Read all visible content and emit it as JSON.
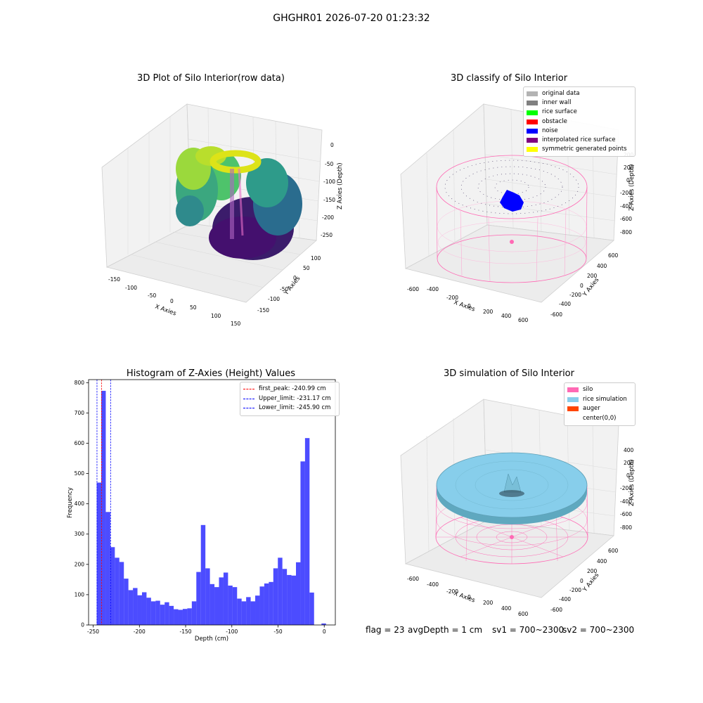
{
  "suptitle": "GHGHR01 2026-07-20 01:23:32",
  "panels": {
    "raw": {
      "title": "3D Plot of Silo Interior(row data)",
      "xlabel": "X Axies",
      "ylabel": "Y Axies",
      "zlabel": "Z Axies (Depth)",
      "xticks": [
        "-150",
        "-100",
        "-50",
        "0",
        "50",
        "100",
        "150"
      ],
      "yticks": [
        "100",
        "50",
        "0",
        "-50",
        "-100",
        "-150"
      ],
      "zticks": [
        "0",
        "-50",
        "-100",
        "-150",
        "-200",
        "-250"
      ]
    },
    "classify": {
      "title": "3D classify of Silo Interior",
      "xlabel": "X Axies",
      "ylabel": "Y Axies",
      "zlabel": "Z Axies (Depth)",
      "xticks": [
        "-600",
        "-400",
        "-200",
        "0",
        "200",
        "400",
        "600"
      ],
      "yticks": [
        "600",
        "400",
        "200",
        "0",
        "-200",
        "-400",
        "-600"
      ],
      "zticks": [
        "200",
        "0",
        "-200",
        "-400",
        "-600",
        "-800"
      ],
      "legend": [
        {
          "label": "original data",
          "color": "#b3b3b3"
        },
        {
          "label": "inner wall",
          "color": "#808080"
        },
        {
          "label": "rice surface",
          "color": "#00ff00"
        },
        {
          "label": "obstacle",
          "color": "#ff0000"
        },
        {
          "label": "noise",
          "color": "#0000ff"
        },
        {
          "label": "interpolated rice surface",
          "color": "#800080"
        },
        {
          "label": "symmetric generated points",
          "color": "#ffff00"
        }
      ],
      "ztick_top": "200"
    },
    "simulation": {
      "title": "3D simulation of Silo Interior",
      "xlabel": "X Axies",
      "ylabel": "Y Axies",
      "zlabel": "Z Axies (Depth)",
      "xticks": [
        "-600",
        "-400",
        "-200",
        "0",
        "200",
        "400",
        "600"
      ],
      "yticks": [
        "600",
        "400",
        "200",
        "0",
        "-200",
        "-400",
        "-600"
      ],
      "zticks": [
        "400",
        "200",
        "0",
        "-200",
        "-400",
        "-600",
        "-800"
      ],
      "legend": [
        {
          "label": "silo",
          "color": "#ff69b4"
        },
        {
          "label": "rice simulation",
          "color": "#87ceeb"
        },
        {
          "label": "auger",
          "color": "#ff4500"
        },
        {
          "label": "center(0,0)",
          "color": ""
        }
      ]
    }
  },
  "footer": {
    "flag": "flag = 23",
    "avg": "avgDepth = 1 cm",
    "sv1": "sv1 = 700~2300",
    "sv2": "sv2 = 700~2300"
  },
  "chart_data": {
    "type": "bar",
    "title": "Histogram of Z-Axies (Height) Values",
    "xlabel": "Depth (cm)",
    "ylabel": "Frequency",
    "xlim": [
      -255,
      12
    ],
    "ylim": [
      0,
      810
    ],
    "xticks": [
      -250,
      -200,
      -150,
      -100,
      -50,
      0
    ],
    "yticks": [
      0,
      100,
      200,
      300,
      400,
      500,
      600,
      700,
      800
    ],
    "bar_color": "#0000ff",
    "bin_width": 4.9,
    "bins": [
      {
        "x": -246.2,
        "h": 470
      },
      {
        "x": -241.3,
        "h": 773
      },
      {
        "x": -236.4,
        "h": 373
      },
      {
        "x": -231.5,
        "h": 257
      },
      {
        "x": -226.6,
        "h": 222
      },
      {
        "x": -221.7,
        "h": 208
      },
      {
        "x": -216.8,
        "h": 153
      },
      {
        "x": -211.9,
        "h": 115
      },
      {
        "x": -207.0,
        "h": 122
      },
      {
        "x": -202.1,
        "h": 98
      },
      {
        "x": -197.2,
        "h": 108
      },
      {
        "x": -192.3,
        "h": 90
      },
      {
        "x": -187.4,
        "h": 78
      },
      {
        "x": -182.5,
        "h": 80
      },
      {
        "x": -177.6,
        "h": 67
      },
      {
        "x": -172.7,
        "h": 75
      },
      {
        "x": -167.8,
        "h": 63
      },
      {
        "x": -162.9,
        "h": 52
      },
      {
        "x": -158.0,
        "h": 50
      },
      {
        "x": -153.1,
        "h": 53
      },
      {
        "x": -148.2,
        "h": 55
      },
      {
        "x": -143.3,
        "h": 78
      },
      {
        "x": -138.4,
        "h": 175
      },
      {
        "x": -133.5,
        "h": 330
      },
      {
        "x": -128.6,
        "h": 187
      },
      {
        "x": -123.7,
        "h": 135
      },
      {
        "x": -118.8,
        "h": 125
      },
      {
        "x": -113.9,
        "h": 157
      },
      {
        "x": -109.0,
        "h": 173
      },
      {
        "x": -104.1,
        "h": 130
      },
      {
        "x": -99.2,
        "h": 125
      },
      {
        "x": -94.3,
        "h": 87
      },
      {
        "x": -89.4,
        "h": 78
      },
      {
        "x": -84.5,
        "h": 92
      },
      {
        "x": -79.6,
        "h": 78
      },
      {
        "x": -74.7,
        "h": 97
      },
      {
        "x": -69.8,
        "h": 127
      },
      {
        "x": -64.9,
        "h": 137
      },
      {
        "x": -60.0,
        "h": 142
      },
      {
        "x": -55.1,
        "h": 187
      },
      {
        "x": -50.2,
        "h": 222
      },
      {
        "x": -45.3,
        "h": 185
      },
      {
        "x": -40.4,
        "h": 165
      },
      {
        "x": -35.5,
        "h": 163
      },
      {
        "x": -30.6,
        "h": 207
      },
      {
        "x": -25.7,
        "h": 540
      },
      {
        "x": -20.8,
        "h": 617
      },
      {
        "x": -15.9,
        "h": 107
      },
      {
        "x": -3.0,
        "h": 5
      }
    ],
    "lines": [
      {
        "x": -240.99,
        "color": "#ff0000",
        "label": "first_peak: -240.99 cm"
      },
      {
        "x": -231.17,
        "color": "#0000ff",
        "label": "Upper_limit: -231.17 cm"
      },
      {
        "x": -245.9,
        "color": "#0000ff",
        "label": "Lower_limit: -245.90 cm"
      }
    ],
    "legend_position": "top-right"
  }
}
